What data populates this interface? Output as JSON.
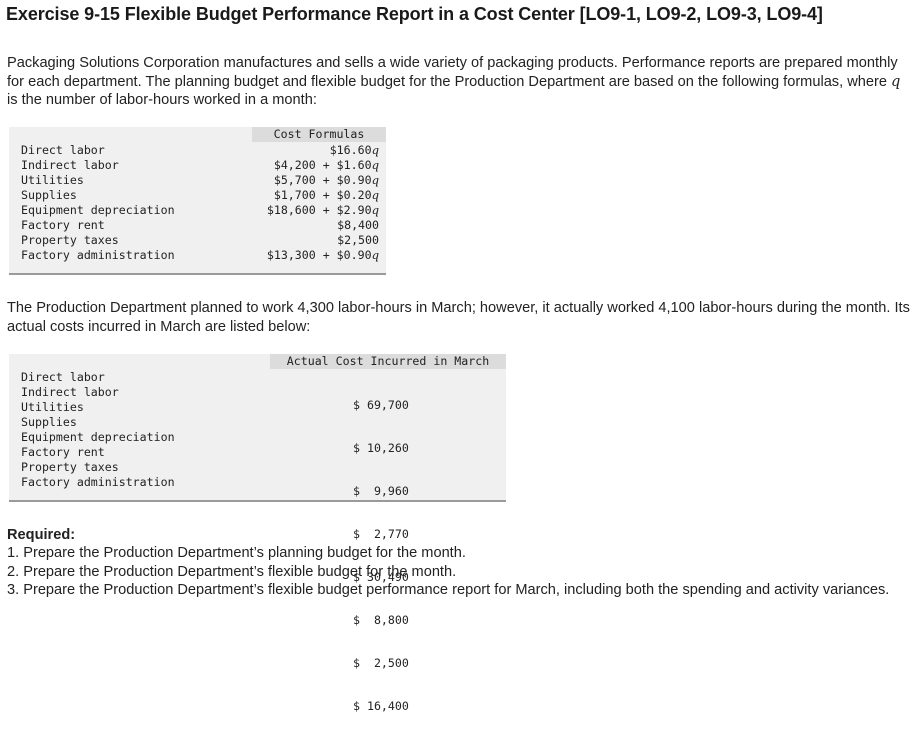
{
  "title": "Exercise 9-15 Flexible Budget Performance Report in a Cost Center [LO9-1, LO9-2, LO9-3, LO9-4]",
  "intro": {
    "text_before_q": "Packaging Solutions Corporation manufactures and sells a wide variety of packaging products. Performance reports are prepared monthly for each department. The planning budget and flexible budget for the Production Department are based on the following formulas, where ",
    "q": "q",
    "text_after_q": " is the number of labor-hours worked in a month:"
  },
  "cost_formulas": {
    "header": "Cost Formulas",
    "rows": [
      {
        "label": "Direct labor",
        "formula": "$16.60",
        "q": "q"
      },
      {
        "label": "Indirect labor",
        "formula": "$4,200 + $1.60",
        "q": "q"
      },
      {
        "label": "Utilities",
        "formula": "$5,700 + $0.90",
        "q": "q"
      },
      {
        "label": "Supplies",
        "formula": "$1,700 + $0.20",
        "q": "q"
      },
      {
        "label": "Equipment depreciation",
        "formula": "$18,600 + $2.90",
        "q": "q"
      },
      {
        "label": "Factory rent",
        "formula": "$8,400",
        "q": ""
      },
      {
        "label": "Property taxes",
        "formula": "$2,500",
        "q": ""
      },
      {
        "label": "Factory administration",
        "formula": "$13,300 + $0.90",
        "q": "q"
      }
    ]
  },
  "middle_text": "The Production Department planned to work 4,300 labor-hours in March; however, it actually worked 4,100 labor-hours during the month. Its actual costs incurred in March are listed below:",
  "actual_costs": {
    "header": "Actual Cost Incurred in March",
    "rows": [
      {
        "label": "Direct labor",
        "amount": "$ 69,700"
      },
      {
        "label": "Indirect labor",
        "amount": "$ 10,260"
      },
      {
        "label": "Utilities",
        "amount": "$  9,960"
      },
      {
        "label": "Supplies",
        "amount": "$  2,770"
      },
      {
        "label": "Equipment depreciation",
        "amount": "$ 30,490"
      },
      {
        "label": "Factory rent",
        "amount": "$  8,800"
      },
      {
        "label": "Property taxes",
        "amount": "$  2,500"
      },
      {
        "label": "Factory administration",
        "amount": "$ 16,400"
      }
    ]
  },
  "required": {
    "heading": "Required:",
    "items": [
      "1. Prepare the Production Department’s planning budget for the month.",
      "2. Prepare the Production Department’s flexible budget for the month.",
      "3. Prepare the Production Department’s flexible budget performance report for March, including both the spending and activity variances."
    ]
  }
}
